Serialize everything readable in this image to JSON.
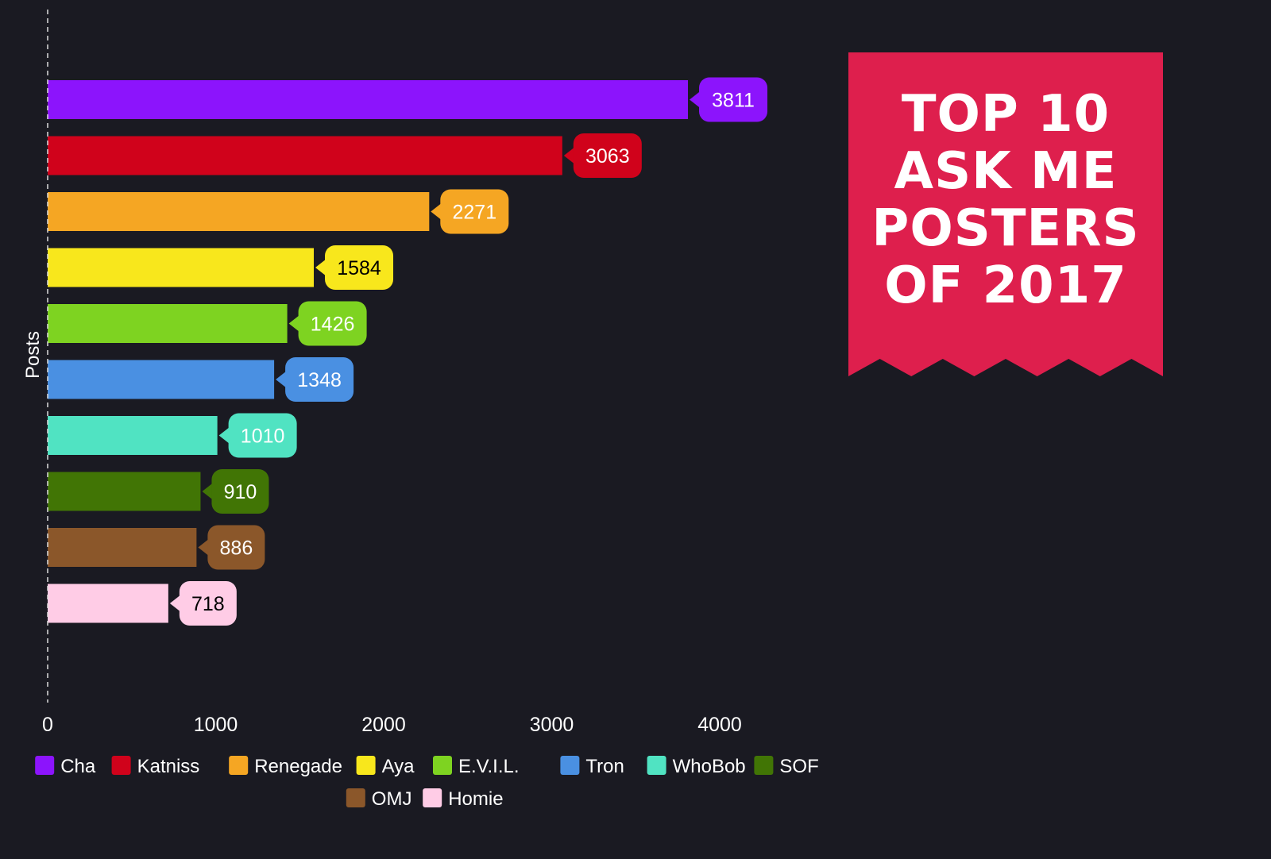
{
  "banner": {
    "lines": [
      "TOP 10",
      "ASK ME",
      "POSTERS",
      "OF 2017"
    ],
    "color": "#de1f4d"
  },
  "chart_data": {
    "type": "bar",
    "orientation": "horizontal",
    "categories": [
      "Cha",
      "Katniss",
      "Renegade",
      "Aya",
      "E.V.I.L.",
      "Tron",
      "WhoBob",
      "SOF",
      "OMJ",
      "Homie"
    ],
    "values": [
      3811,
      3063,
      2271,
      1584,
      1426,
      1348,
      1010,
      910,
      886,
      718
    ],
    "colors": [
      "#8c14fc",
      "#d0021b",
      "#f5a623",
      "#f8e71c",
      "#7ed321",
      "#4a90e2",
      "#50e3c2",
      "#417505",
      "#8b572a",
      "#ffcce6"
    ],
    "label_text_colors": [
      "#ffffff",
      "#ffffff",
      "#ffffff",
      "#000000",
      "#ffffff",
      "#ffffff",
      "#ffffff",
      "#ffffff",
      "#ffffff",
      "#000000"
    ],
    "ylabel": "Posts",
    "xlabel": "",
    "xlim": [
      0,
      4300
    ],
    "xticks": [
      0,
      1000,
      2000,
      3000,
      4000
    ],
    "legend_position": "bottom",
    "grid": false,
    "background": "#1a1a22"
  }
}
